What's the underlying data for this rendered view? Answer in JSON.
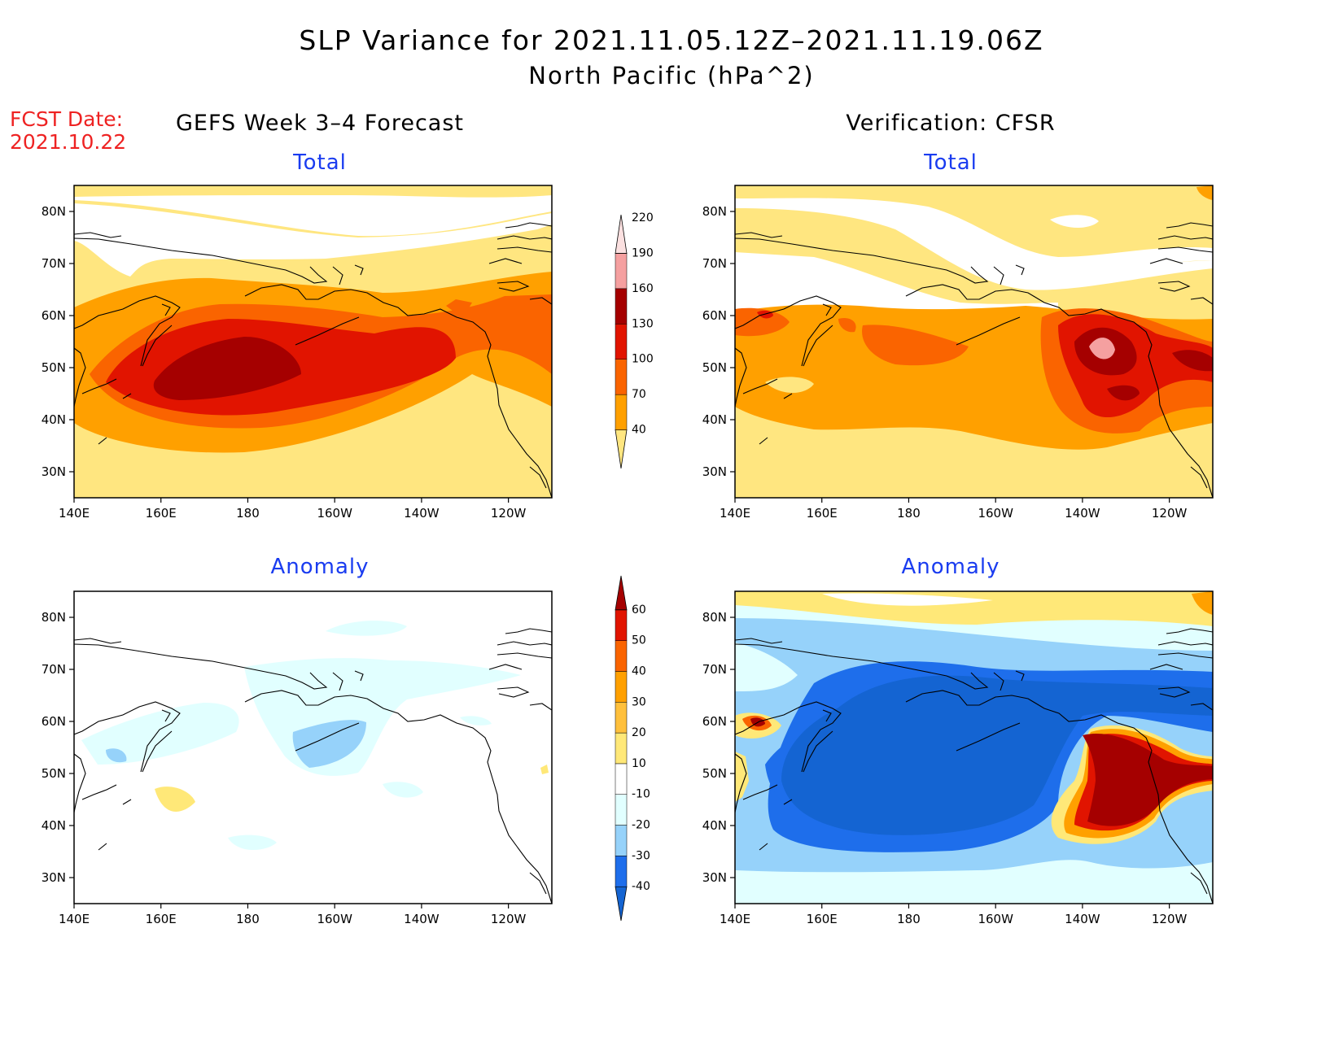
{
  "title": {
    "line1": "SLP Variance for 2021.11.05.12Z–2021.11.19.06Z",
    "line2": "North Pacific (hPa^2)"
  },
  "forecast_date": {
    "label": "FCST Date:",
    "value": "2021.10.22"
  },
  "columns": {
    "left": "GEFS Week 3–4 Forecast",
    "right": "Verification: CFSR"
  },
  "panel_labels": {
    "total": "Total",
    "anomaly": "Anomaly"
  },
  "axes": {
    "x_ticks": [
      "140E",
      "160E",
      "180",
      "160W",
      "140W",
      "120W"
    ],
    "y_ticks": [
      "80N",
      "70N",
      "60N",
      "50N",
      "40N",
      "30N"
    ],
    "x_range": [
      "140E",
      "110W"
    ],
    "y_range": [
      "25N",
      "85N"
    ]
  },
  "colorbars": {
    "total": {
      "levels": [
        "40",
        "70",
        "100",
        "130",
        "160",
        "190",
        "220"
      ],
      "colors": [
        "#ffe680",
        "#ffa000",
        "#fa6400",
        "#e11400",
        "#a50000",
        "#f5a0a0",
        "#fbe0e0"
      ]
    },
    "anomaly": {
      "levels": [
        "-40",
        "-30",
        "-20",
        "-10",
        "10",
        "20",
        "30",
        "40",
        "50",
        "60"
      ],
      "colors": [
        "#1464d2",
        "#1e6eeb",
        "#96d2fa",
        "#e1ffff",
        "#ffffff",
        "#ffe878",
        "#ffc03c",
        "#ffa000",
        "#fa6400",
        "#e11400",
        "#a50000"
      ]
    }
  },
  "colors": {
    "title_text": "#000000",
    "fcst_text": "#ee2222",
    "panel_label_text": "#1a3cf0",
    "coastline": "#000000"
  }
}
